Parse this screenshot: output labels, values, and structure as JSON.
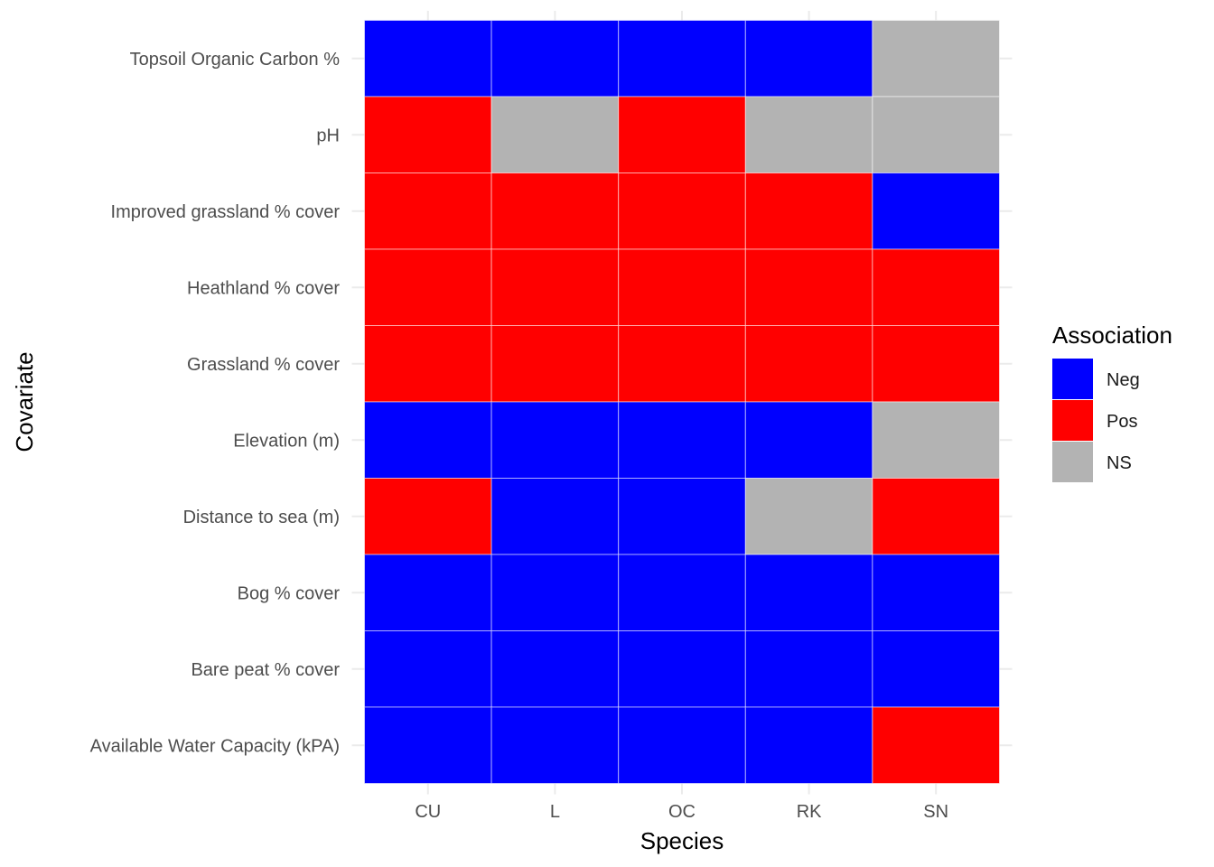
{
  "chart_data": {
    "type": "heatmap",
    "title": "",
    "xlabel": "Species",
    "ylabel": "Covariate",
    "x_categories": [
      "CU",
      "L",
      "OC",
      "RK",
      "SN"
    ],
    "y_categories": [
      "Topsoil Organic Carbon %",
      "pH",
      "Improved grassland % cover",
      "Heathland % cover",
      "Grassland % cover",
      "Elevation (m)",
      "Distance to sea (m)",
      "Bog % cover",
      "Bare peat % cover",
      "Available Water Capacity (kPA)"
    ],
    "values": [
      [
        "Neg",
        "Neg",
        "Neg",
        "Neg",
        "NS"
      ],
      [
        "Pos",
        "NS",
        "Pos",
        "NS",
        "NS"
      ],
      [
        "Pos",
        "Pos",
        "Pos",
        "Pos",
        "Neg"
      ],
      [
        "Pos",
        "Pos",
        "Pos",
        "Pos",
        "Pos"
      ],
      [
        "Pos",
        "Pos",
        "Pos",
        "Pos",
        "Pos"
      ],
      [
        "Neg",
        "Neg",
        "Neg",
        "Neg",
        "NS"
      ],
      [
        "Pos",
        "Neg",
        "Neg",
        "NS",
        "Pos"
      ],
      [
        "Neg",
        "Neg",
        "Neg",
        "Neg",
        "Neg"
      ],
      [
        "Neg",
        "Neg",
        "Neg",
        "Neg",
        "Neg"
      ],
      [
        "Neg",
        "Neg",
        "Neg",
        "Neg",
        "Pos"
      ]
    ],
    "legend": {
      "title": "Association",
      "placement": "right",
      "items": [
        {
          "label": "Neg",
          "color": "#0000ff"
        },
        {
          "label": "Pos",
          "color": "#ff0000"
        },
        {
          "label": "NS",
          "color": "#b3b3b3"
        }
      ]
    },
    "grid": true
  }
}
